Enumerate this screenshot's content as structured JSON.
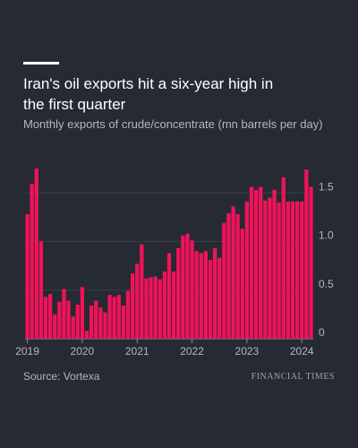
{
  "chart_data": {
    "type": "bar",
    "title": "Iran's oil exports hit a six-year high in the first quarter",
    "subtitle": "Monthly exports of crude/concentrate (mn barrels per day)",
    "source": "Source: Vortexa",
    "publisher": "FINANCIAL TIMES",
    "categories": [
      "2019",
      null,
      null,
      null,
      null,
      null,
      null,
      null,
      null,
      null,
      null,
      null,
      "2020",
      null,
      null,
      null,
      null,
      null,
      null,
      null,
      null,
      null,
      null,
      null,
      "2021",
      null,
      null,
      null,
      null,
      null,
      null,
      null,
      null,
      null,
      null,
      null,
      "2022",
      null,
      null,
      null,
      null,
      null,
      null,
      null,
      null,
      null,
      null,
      null,
      "2023",
      null,
      null,
      null,
      null,
      null,
      null,
      null,
      null,
      null,
      null,
      null,
      "2024",
      null,
      null
    ],
    "values": [
      1.28,
      1.59,
      1.75,
      1.0,
      0.43,
      0.46,
      0.25,
      0.38,
      0.51,
      0.39,
      0.23,
      0.35,
      0.53,
      0.08,
      0.34,
      0.39,
      0.32,
      0.27,
      0.45,
      0.43,
      0.45,
      0.34,
      0.49,
      0.67,
      0.77,
      0.97,
      0.62,
      0.63,
      0.64,
      0.61,
      0.69,
      0.88,
      0.69,
      0.93,
      1.06,
      1.08,
      1.01,
      0.9,
      0.88,
      0.9,
      0.81,
      0.93,
      0.83,
      1.19,
      1.29,
      1.36,
      1.28,
      1.13,
      1.41,
      1.56,
      1.53,
      1.56,
      1.42,
      1.45,
      1.53,
      1.4,
      1.66,
      1.41,
      1.41,
      1.41,
      1.41,
      1.74,
      1.56
    ],
    "color": "#f0135a",
    "ylim": [
      0,
      1.75
    ],
    "yticks": [
      0,
      0.5,
      {
        "value": 1,
        "label": "1.0"
      },
      1.5
    ],
    "grid": true
  }
}
